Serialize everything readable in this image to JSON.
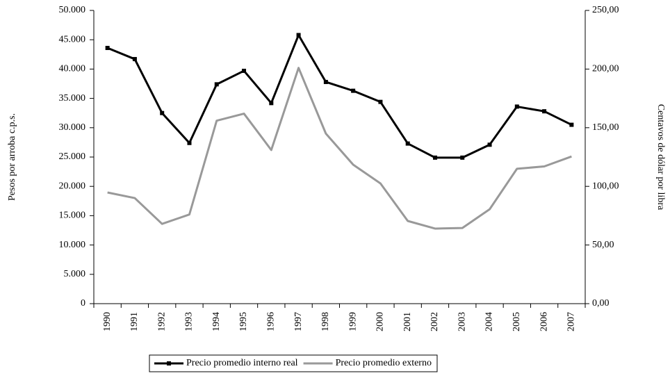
{
  "chart_data": {
    "type": "line",
    "categories": [
      "1990",
      "1991",
      "1992",
      "1993",
      "1994",
      "1995",
      "1996",
      "1997",
      "1998",
      "1999",
      "2000",
      "2001",
      "2002",
      "2003",
      "2004",
      "2005",
      "2006",
      "2007"
    ],
    "y_label": "Pesos por arroba c.p.s.",
    "y2_label": "Centavos de dólar por libra",
    "ylim": [
      0,
      50000
    ],
    "yticks": [
      0,
      {
        "value": 5000,
        "label": "5.000"
      },
      {
        "value": 10000,
        "label": "10.000"
      },
      {
        "value": 15000,
        "label": "15.000"
      },
      {
        "value": 20000,
        "label": "20.000"
      },
      {
        "value": 25000,
        "label": "25.000"
      },
      {
        "value": 30000,
        "label": "30.000"
      },
      {
        "value": 35000,
        "label": "35.000"
      },
      {
        "value": 40000,
        "label": "40.000"
      },
      {
        "value": 45000,
        "label": "45.000"
      },
      {
        "value": 50000,
        "label": "50.000"
      }
    ],
    "y2lim": [
      0,
      250
    ],
    "y2ticks": [
      {
        "value": 0,
        "label": "0,00"
      },
      {
        "value": 50,
        "label": "50,00"
      },
      {
        "value": 100,
        "label": "100,00"
      },
      {
        "value": 150,
        "label": "150,00"
      },
      {
        "value": 200,
        "label": "200,00"
      },
      {
        "value": 250,
        "label": "250,00"
      }
    ],
    "series": [
      {
        "name": "Precio promedio interno real",
        "color": "#000000",
        "marker": "square",
        "values": [
          43600,
          41700,
          32500,
          27400,
          37400,
          39700,
          34200,
          45800,
          37800,
          36300,
          34400,
          27300,
          24900,
          24900,
          27100,
          33600,
          32800,
          30500
        ]
      },
      {
        "name": "Precio promedio externo",
        "color": "#999999",
        "marker": "none",
        "axis": "y2",
        "values": [
          94.8,
          90,
          68,
          76,
          156,
          162,
          131,
          201,
          145,
          118.5,
          102.5,
          70.5,
          64,
          64.5,
          80.5,
          115,
          117,
          125.5
        ]
      }
    ]
  }
}
